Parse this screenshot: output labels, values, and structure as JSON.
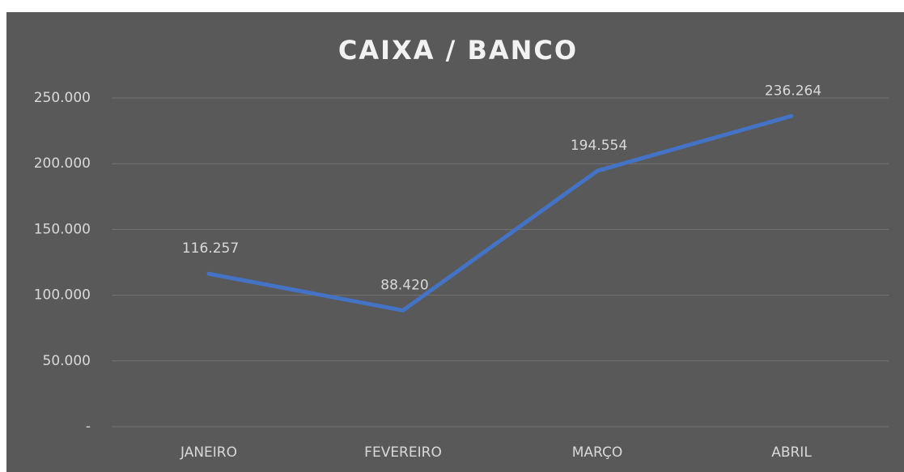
{
  "chart_data": {
    "type": "line",
    "title": "CAIXA / BANCO",
    "categories": [
      "JANEIRO",
      "FEVEREIRO",
      "MARÇO",
      "ABRIL"
    ],
    "series": [
      {
        "name": "CAIXA / BANCO",
        "color": "#4472c4",
        "values": [
          116257,
          88420,
          194554,
          236264
        ],
        "value_labels": [
          "116.257",
          "88.420",
          "194.554",
          "236.264"
        ]
      }
    ],
    "ylim": [
      0,
      250000
    ],
    "yticks": [
      {
        "value": 0,
        "label": "-"
      },
      {
        "value": 50000,
        "label": "50.000"
      },
      {
        "value": 100000,
        "label": "100.000"
      },
      {
        "value": 150000,
        "label": "150.000"
      },
      {
        "value": 200000,
        "label": "200.000"
      },
      {
        "value": 250000,
        "label": "250.000"
      }
    ],
    "grid": true
  }
}
